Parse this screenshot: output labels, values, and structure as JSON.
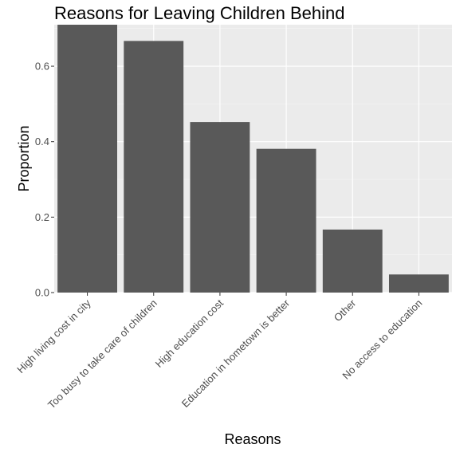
{
  "colors": {
    "panel": "#ebebeb",
    "grid_major": "#ffffff",
    "grid_minor": "#f5f5f5",
    "bar": "#595959",
    "tick": "#333333"
  },
  "chart_data": {
    "type": "bar",
    "title": "Reasons for Leaving Children Behind",
    "xlabel": "Reasons",
    "ylabel": "Proportion",
    "categories": [
      "High living cost in city",
      "Too busy to take care of children",
      "High education cost",
      "Education in hometown is better",
      "Other",
      "No access to education"
    ],
    "values": [
      0.72,
      0.667,
      0.452,
      0.381,
      0.167,
      0.048
    ],
    "ylim": [
      0,
      0.71
    ],
    "yticks": [
      0.0,
      0.2,
      0.4,
      0.6
    ],
    "ytick_labels": [
      "0.0",
      "0.2",
      "0.4",
      "0.6"
    ],
    "grid": true,
    "legend": "none"
  }
}
